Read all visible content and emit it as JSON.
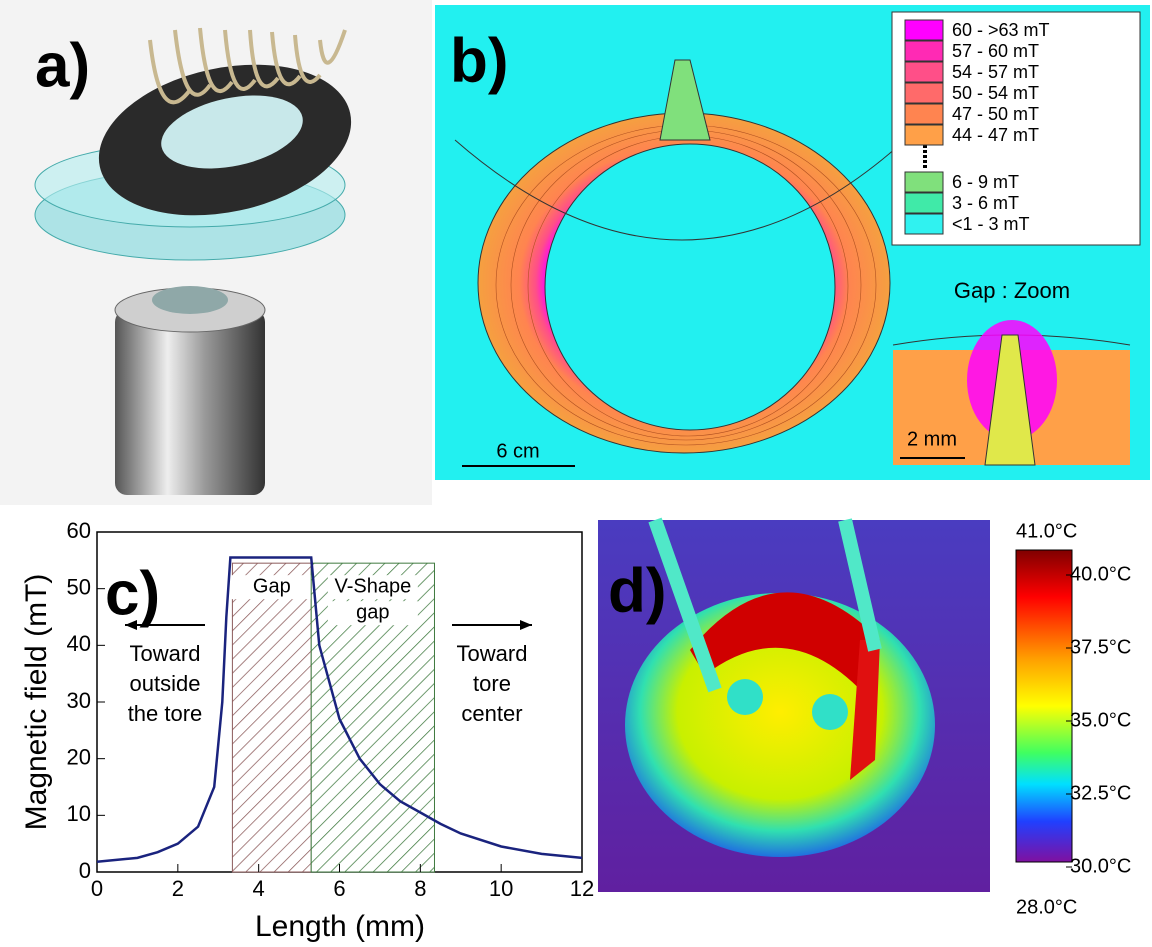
{
  "panels": {
    "a": {
      "label": "a)"
    },
    "b": {
      "label": "b)",
      "legend": [
        {
          "label": "60 - >63 mT",
          "color": "#ff00ff"
        },
        {
          "label": "57 - 60 mT",
          "color": "#ff2ab4"
        },
        {
          "label": "54 - 57 mT",
          "color": "#ff4f88"
        },
        {
          "label": "50 - 54 mT",
          "color": "#ff6a6a"
        },
        {
          "label": "47 - 50 mT",
          "color": "#ff8450"
        },
        {
          "label": "44 - 47 mT",
          "color": "#ffa048"
        },
        {
          "label": "6 - 9 mT",
          "color": "#80e07c"
        },
        {
          "label": "3 - 6 mT",
          "color": "#40eaa8"
        },
        {
          "label": "<1 - 3 mT",
          "color": "#30f2f0"
        }
      ],
      "scale_bar": "6 cm",
      "zoom": {
        "title": "Gap : Zoom",
        "scale_bar": "2 mm"
      }
    },
    "d": {
      "label": "d)",
      "colorbar": {
        "ticks": [
          {
            "value": 41,
            "label": "41.0°C"
          },
          {
            "value": 40,
            "label": "40.0°C"
          },
          {
            "value": 37.5,
            "label": "37.5°C"
          },
          {
            "value": 35,
            "label": "35.0°C"
          },
          {
            "value": 32.5,
            "label": "32.5°C"
          },
          {
            "value": 30,
            "label": "30.0°C"
          },
          {
            "value": 28,
            "label": "28.0°C"
          }
        ]
      }
    }
  },
  "chart_data": {
    "type": "line",
    "panel_label": "c)",
    "x_label": "Length (mm)",
    "y_label": "Magnetic field (mT)",
    "x": [
      0,
      1,
      1.5,
      2,
      2.5,
      2.9,
      3.1,
      3.2,
      3.3,
      5.3,
      5.5,
      6,
      6.5,
      7,
      7.5,
      8,
      8.5,
      9,
      10,
      11,
      12
    ],
    "values": [
      1.8,
      2.5,
      3.5,
      5,
      8,
      15,
      30,
      45,
      55.5,
      55.5,
      40,
      27,
      20,
      15.5,
      12.5,
      10.5,
      8.5,
      6.8,
      4.5,
      3.2,
      2.5
    ],
    "color": "#1a237e",
    "xlim": [
      0,
      12
    ],
    "ylim": [
      0,
      60
    ],
    "xticks": [
      0,
      2,
      4,
      6,
      8,
      10,
      12
    ],
    "yticks": [
      0,
      10,
      20,
      30,
      40,
      50,
      60
    ],
    "regions": [
      {
        "label_lines": [
          "Gap"
        ],
        "x0": 3.35,
        "x1": 5.3,
        "top": 54.5,
        "color": "#8b5a5a"
      },
      {
        "label_lines": [
          "V-Shape",
          "gap"
        ],
        "x0": 5.3,
        "x1": 8.35,
        "top": 54.5,
        "color": "#3f7a3f"
      }
    ],
    "annotations": [
      {
        "lines": [
          "Toward",
          "outside",
          "the tore"
        ]
      },
      {
        "lines": [
          "Toward",
          "tore",
          "center"
        ]
      }
    ]
  }
}
